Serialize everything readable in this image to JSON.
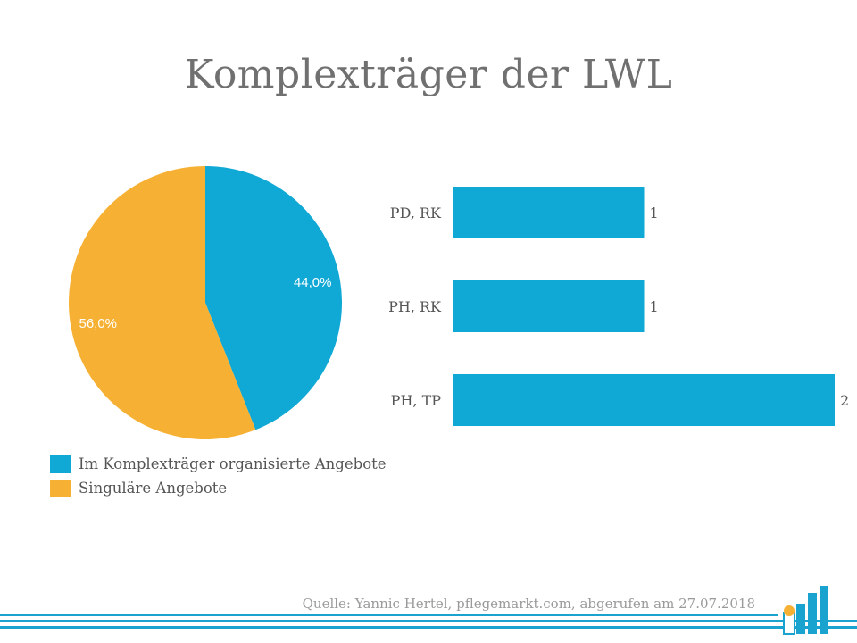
{
  "title": "Komplexträger der LWL",
  "colors": {
    "blue": "#10a8d4",
    "orange": "#f6b134",
    "text": "#555555"
  },
  "chart_data": [
    {
      "type": "pie",
      "slices": [
        {
          "label": "Im Komplexträger organisierte Angebote",
          "value": 44.0,
          "display": "44,0%",
          "color": "#10a8d4"
        },
        {
          "label": "Singuläre Angebote",
          "value": 56.0,
          "display": "56,0%",
          "color": "#f6b134"
        }
      ],
      "legend_position": "bottom-left"
    },
    {
      "type": "bar",
      "orientation": "horizontal",
      "categories": [
        "PD, RK",
        "PH, RK",
        "PH, TP"
      ],
      "values": [
        1,
        1,
        2
      ],
      "value_labels": [
        "1",
        "1",
        "2"
      ],
      "xlim": [
        0,
        2
      ],
      "color": "#10a8d4"
    }
  ],
  "source": "Quelle: Yannic Hertel, pflegemarkt.com, abgerufen am 27.07.2018",
  "logo_icon": "pflegemarkt-logo-icon"
}
